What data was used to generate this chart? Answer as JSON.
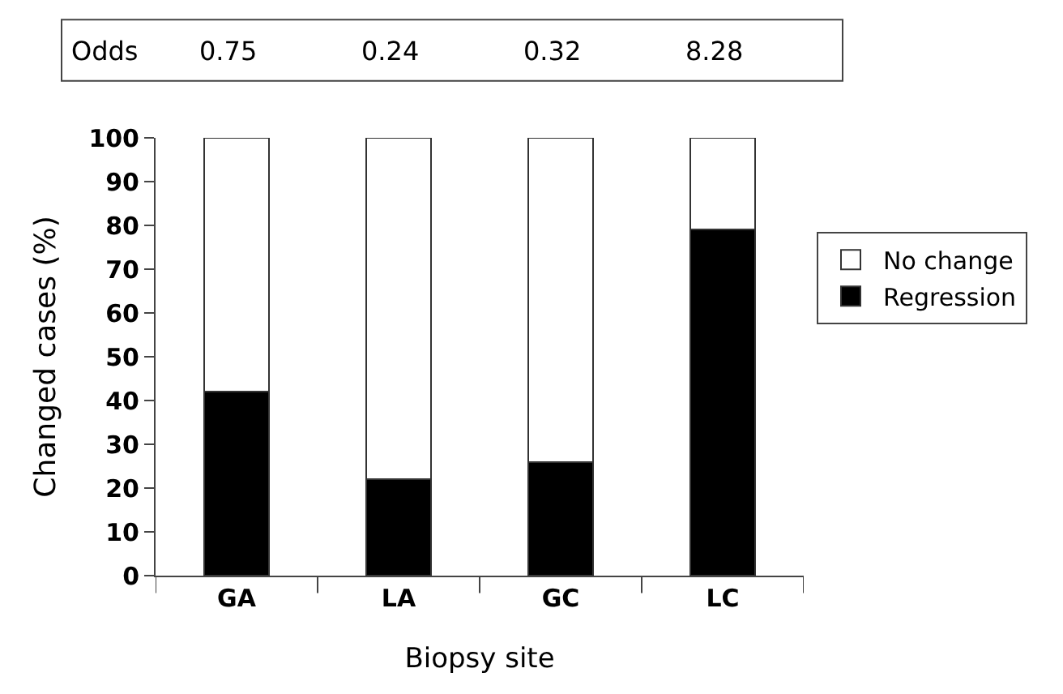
{
  "chart_data": {
    "type": "bar",
    "stacked": true,
    "xlabel": "Biopsy site",
    "ylabel": "Changed cases (%)",
    "categories": [
      "GA",
      "LA",
      "GC",
      "LC"
    ],
    "series": [
      {
        "name": "Regression",
        "color": "#000000",
        "values": [
          42,
          22,
          26,
          79
        ]
      },
      {
        "name": "No change",
        "color": "#ffffff",
        "values": [
          58,
          78,
          74,
          21
        ]
      }
    ],
    "ylim": [
      0,
      100
    ],
    "yticks": [
      0,
      10,
      20,
      30,
      40,
      50,
      60,
      70,
      80,
      90,
      100
    ],
    "legend": "right",
    "annotations": [
      "Odds",
      "0.75",
      "0.24",
      "0.32",
      "8.28"
    ]
  }
}
